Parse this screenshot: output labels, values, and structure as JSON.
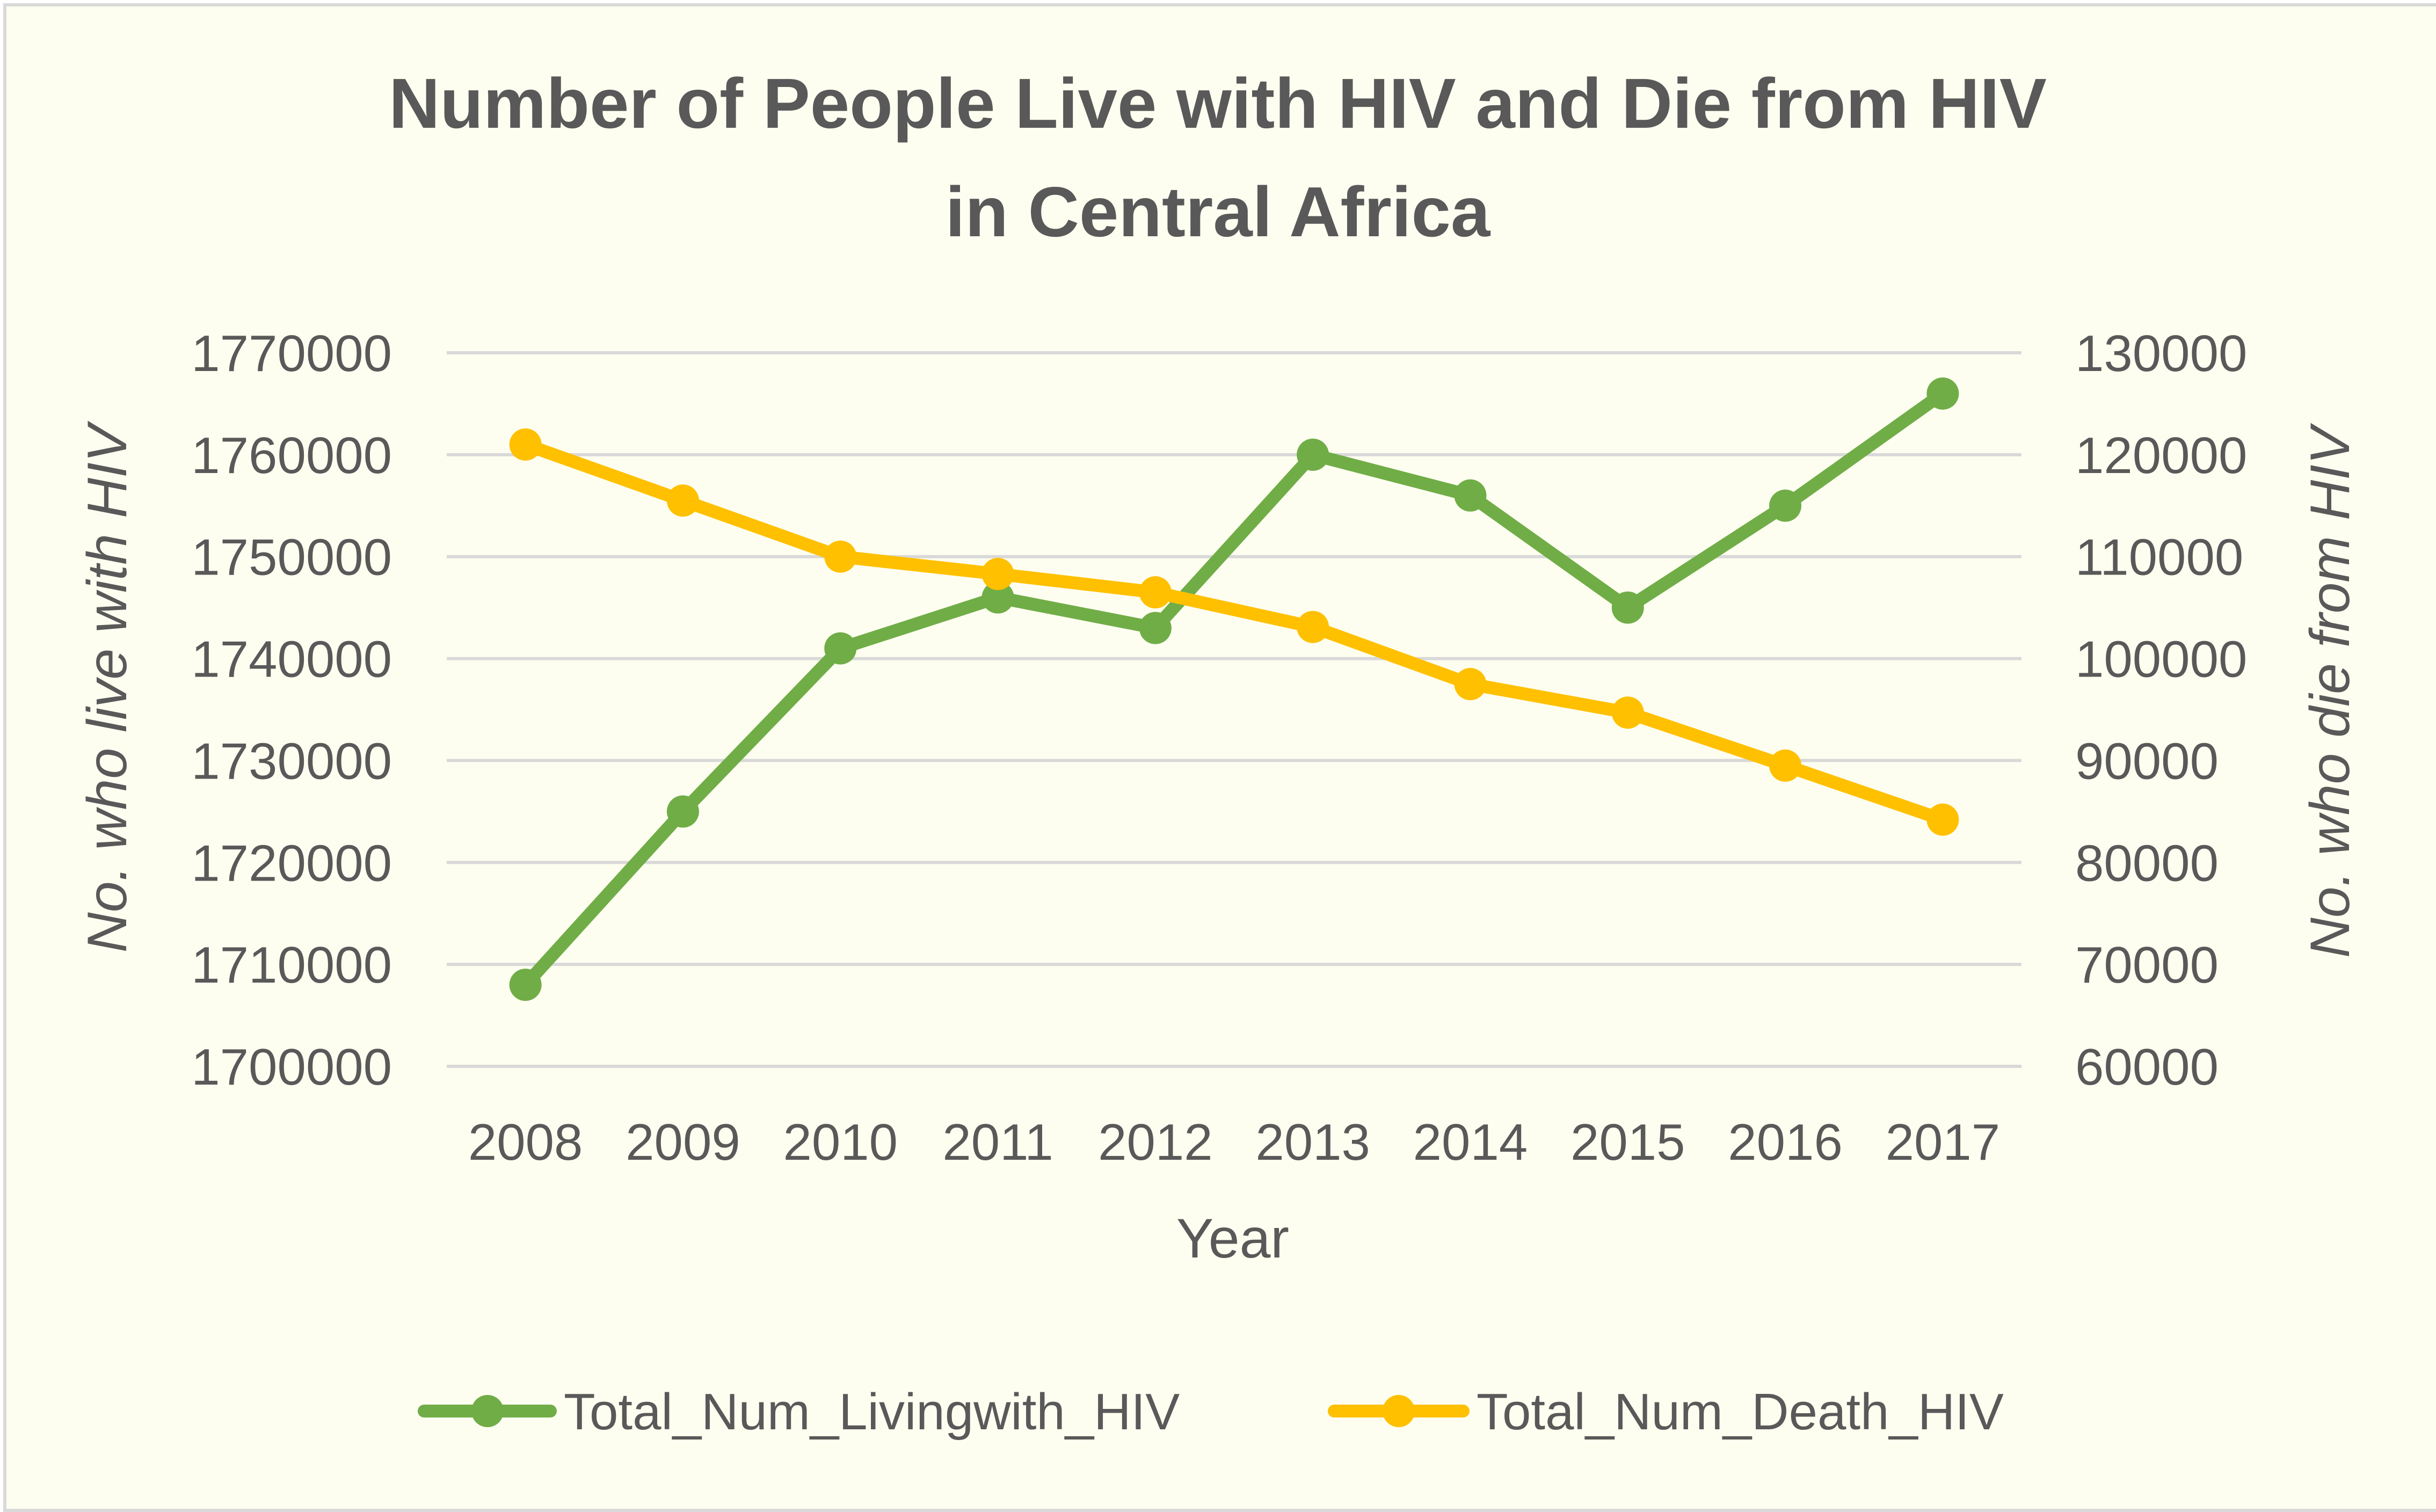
{
  "chart_data": {
    "type": "line",
    "title": "Number of People Live with HIV and Die from HIV in Central Africa",
    "title_lines": [
      "Number of People Live with HIV and Die from HIV",
      "in Central Africa"
    ],
    "xlabel": "Year",
    "ylabel_left": "No. who live with HIV",
    "ylabel_right": "No. who die from HIV",
    "categories": [
      "2008",
      "2009",
      "2010",
      "2011",
      "2012",
      "2013",
      "2014",
      "2015",
      "2016",
      "2017"
    ],
    "y_left": {
      "min": 1700000,
      "max": 1770000,
      "ticks": [
        "1700000",
        "1710000",
        "1720000",
        "1730000",
        "1740000",
        "1750000",
        "1760000",
        "1770000"
      ]
    },
    "y_right": {
      "min": 60000,
      "max": 130000,
      "ticks": [
        "60000",
        "70000",
        "80000",
        "90000",
        "100000",
        "110000",
        "120000",
        "130000"
      ]
    },
    "grid": true,
    "legend_position": "bottom",
    "series": [
      {
        "name": "Total_Num_Livingwith_HIV",
        "axis": "left",
        "color": "#70ad47",
        "values": [
          1708000,
          1725000,
          1741000,
          1746000,
          1743000,
          1760000,
          1756000,
          1745000,
          1755000,
          1766000
        ]
      },
      {
        "name": "Total_Num_Death_HIV",
        "axis": "right",
        "color": "#ffc000",
        "values": [
          121000,
          115500,
          110000,
          108300,
          106500,
          103100,
          97500,
          94700,
          89500,
          84200
        ]
      }
    ]
  }
}
